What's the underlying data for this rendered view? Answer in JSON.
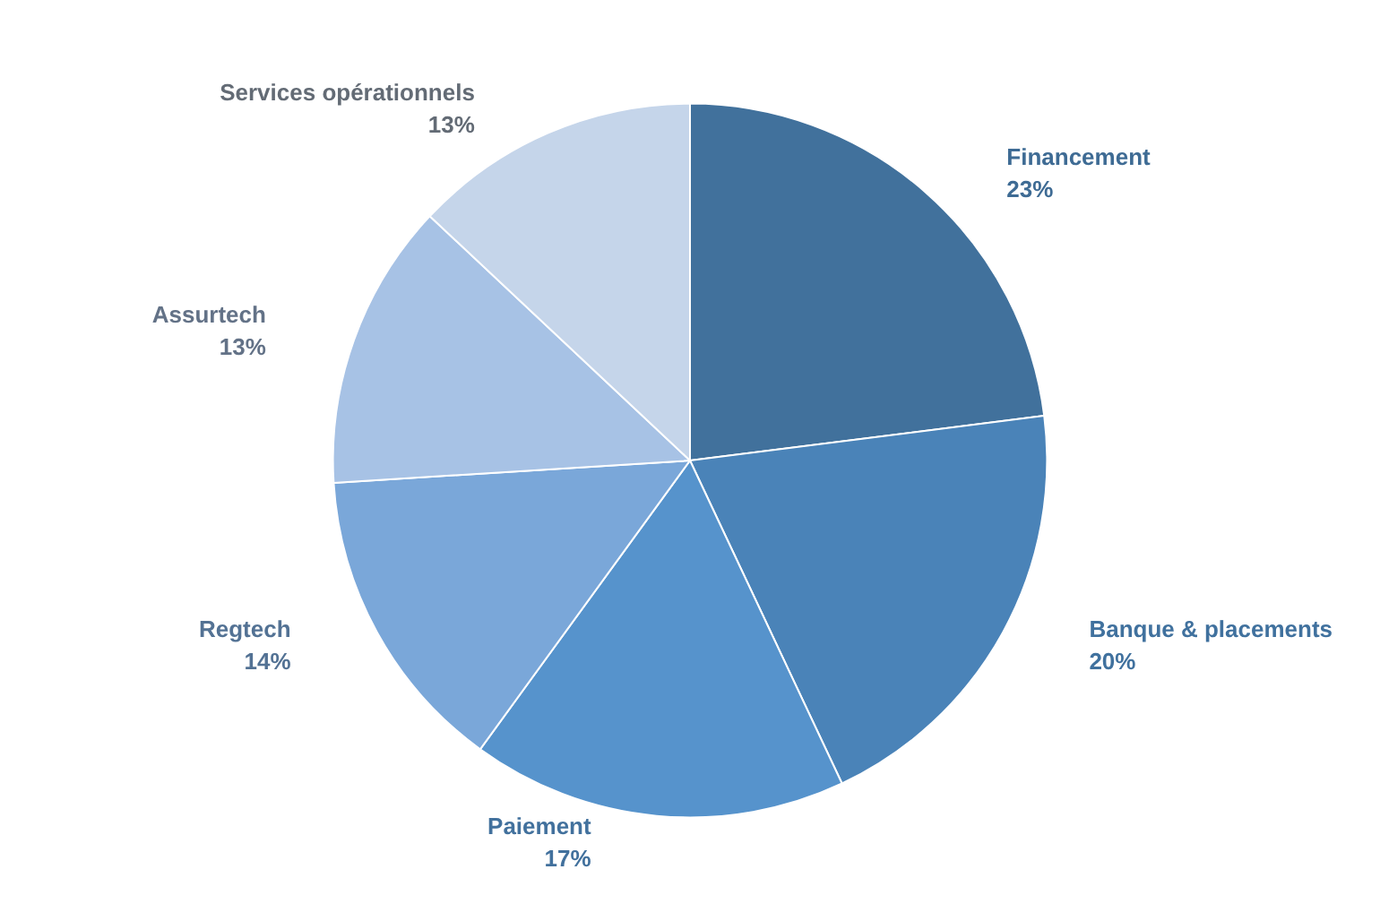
{
  "chart_data": {
    "type": "pie",
    "categories": [
      "Financement",
      "Banque & placements",
      "Paiement",
      "Regtech",
      "Assurtech",
      "Services opérationnels"
    ],
    "values": [
      23,
      20,
      17,
      14,
      13,
      13
    ],
    "value_labels": [
      "23%",
      "20%",
      "17%",
      "14%",
      "13%",
      "13%"
    ],
    "colors": [
      "#41719c",
      "#4a83b8",
      "#5693cc",
      "#7aa7d9",
      "#a7c2e5",
      "#c5d5ea"
    ],
    "legend": false
  }
}
